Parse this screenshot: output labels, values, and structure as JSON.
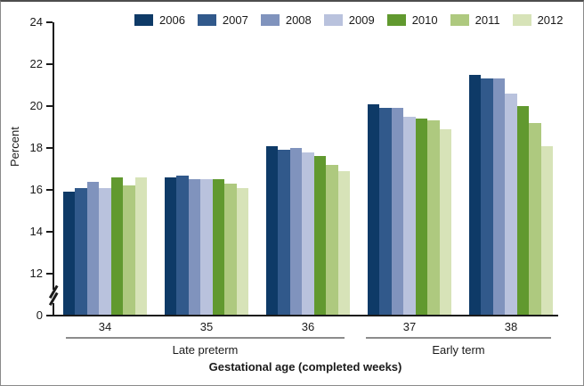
{
  "chart_data": {
    "type": "bar",
    "title": "",
    "ylabel": "Percent",
    "xlabel": "Gestational age (completed weeks)",
    "categories": [
      "34",
      "35",
      "36",
      "37",
      "38"
    ],
    "series": [
      {
        "name": "2006",
        "color": "#0e3a67",
        "values": [
          15.9,
          16.6,
          18.1,
          20.1,
          21.5
        ]
      },
      {
        "name": "2007",
        "color": "#31598b",
        "values": [
          16.1,
          16.7,
          17.9,
          19.9,
          21.3
        ]
      },
      {
        "name": "2008",
        "color": "#8093bd",
        "values": [
          16.4,
          16.5,
          18.0,
          19.9,
          21.3
        ]
      },
      {
        "name": "2009",
        "color": "#b9c2dd",
        "values": [
          16.1,
          16.5,
          17.8,
          19.5,
          20.6
        ]
      },
      {
        "name": "2010",
        "color": "#61992f",
        "values": [
          16.6,
          16.5,
          17.6,
          19.4,
          20.0
        ]
      },
      {
        "name": "2011",
        "color": "#aec97f",
        "values": [
          16.2,
          16.3,
          17.2,
          19.3,
          19.2
        ]
      },
      {
        "name": "2012",
        "color": "#d7e3b8",
        "values": [
          16.6,
          16.1,
          16.9,
          18.9,
          18.1
        ]
      }
    ],
    "yaxis": {
      "ticks": [
        0,
        12,
        14,
        16,
        18,
        20,
        22,
        24
      ],
      "shown_range": [
        12,
        24
      ],
      "axis_break_between": [
        0,
        12
      ],
      "gridlines": false
    },
    "group_brackets": [
      {
        "label": "Late preterm",
        "categories": [
          "34",
          "35",
          "36"
        ]
      },
      {
        "label": "Early term",
        "categories": [
          "37",
          "38"
        ]
      }
    ],
    "legend_position": "top"
  }
}
